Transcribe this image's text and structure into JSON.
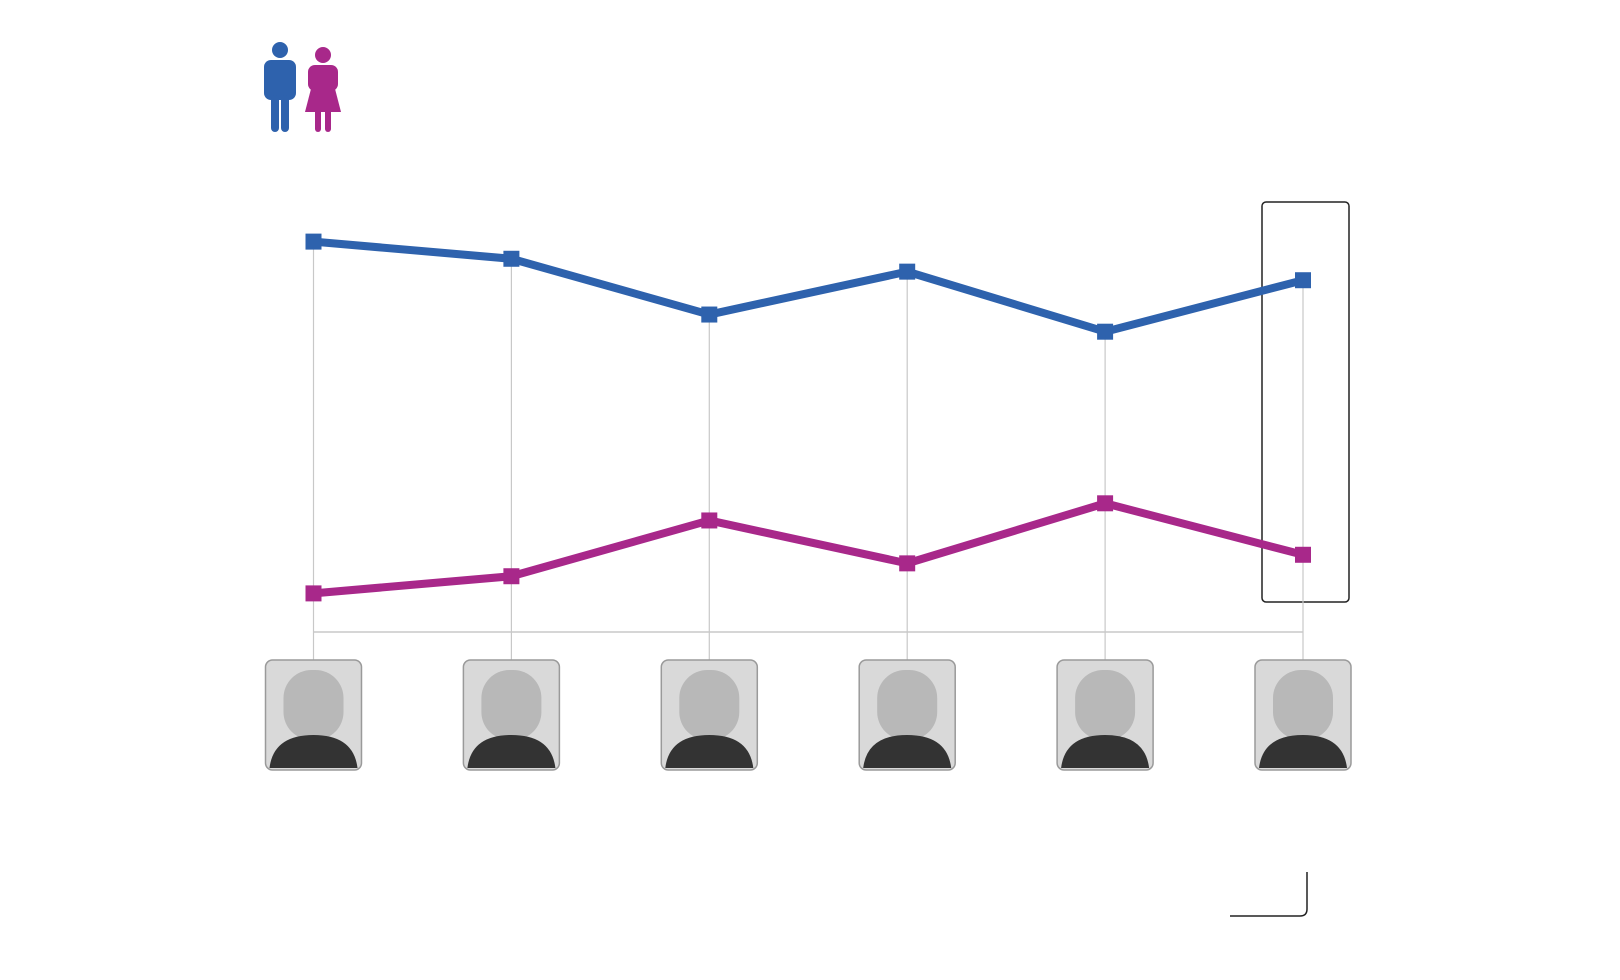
{
  "chart_data": {
    "type": "line",
    "categories": [
      null,
      null,
      null,
      null,
      null,
      null
    ],
    "series": [
      {
        "color": "#2e62ad",
        "values": [
          91,
          87,
          74,
          84,
          70,
          82
        ]
      },
      {
        "color": "#a8288a",
        "values": [
          9,
          13,
          26,
          16,
          30,
          18
        ]
      }
    ],
    "ylim": [
      0,
      100
    ]
  }
}
